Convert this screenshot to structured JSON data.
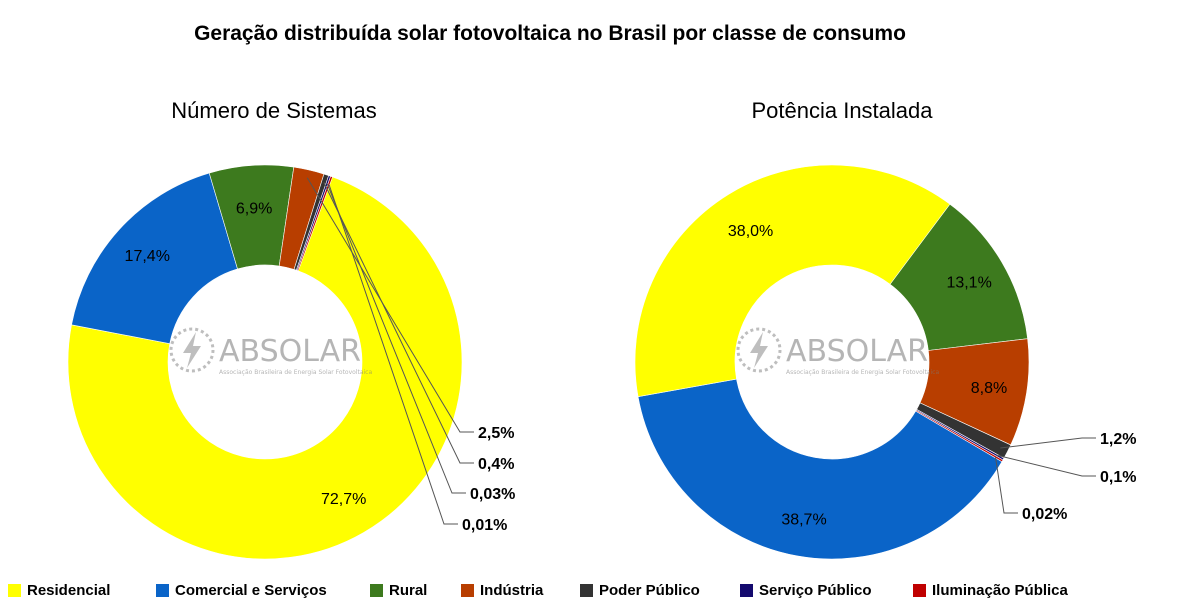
{
  "title": "Geração distribuída solar fotovoltaica no Brasil por classe de consumo",
  "logo": {
    "name": "ABSOLAR",
    "tagline": "Associação Brasileira de Energia Solar Fotovoltaica"
  },
  "legend": [
    {
      "label": "Residencial",
      "color": "#ffff00"
    },
    {
      "label": "Comercial e Serviços",
      "color": "#0a64c8"
    },
    {
      "label": "Rural",
      "color": "#3d7a1e"
    },
    {
      "label": "Indústria",
      "color": "#b83e00"
    },
    {
      "label": "Poder Público",
      "color": "#333333"
    },
    {
      "label": "Serviço Público",
      "color": "#140a6e"
    },
    {
      "label": "Iluminação Pública",
      "color": "#c00000"
    }
  ],
  "chart_data": [
    {
      "type": "pie",
      "title": "Número de Sistemas",
      "categories": [
        "Residencial",
        "Comercial e Serviços",
        "Rural",
        "Indústria",
        "Poder Público",
        "Serviço Público",
        "Iluminação Pública"
      ],
      "values": [
        72.7,
        17.4,
        6.9,
        2.5,
        0.4,
        0.03,
        0.01
      ],
      "labels": [
        "72,7%",
        "17,4%",
        "6,9%",
        "2,5%",
        "0,4%",
        "0,03%",
        "0,01%"
      ]
    },
    {
      "type": "pie",
      "title": "Potência Instalada",
      "categories": [
        "Rural",
        "Indústria",
        "Poder Público",
        "Serviço Público",
        "Iluminação Pública",
        "Comercial e Serviços",
        "Residencial"
      ],
      "values": [
        13.1,
        8.8,
        1.2,
        0.1,
        0.02,
        38.7,
        38.0
      ],
      "labels": [
        "13,1%",
        "8,8%",
        "1,2%",
        "0,1%",
        "0,02%",
        "38,7%",
        "38,0%"
      ]
    }
  ]
}
